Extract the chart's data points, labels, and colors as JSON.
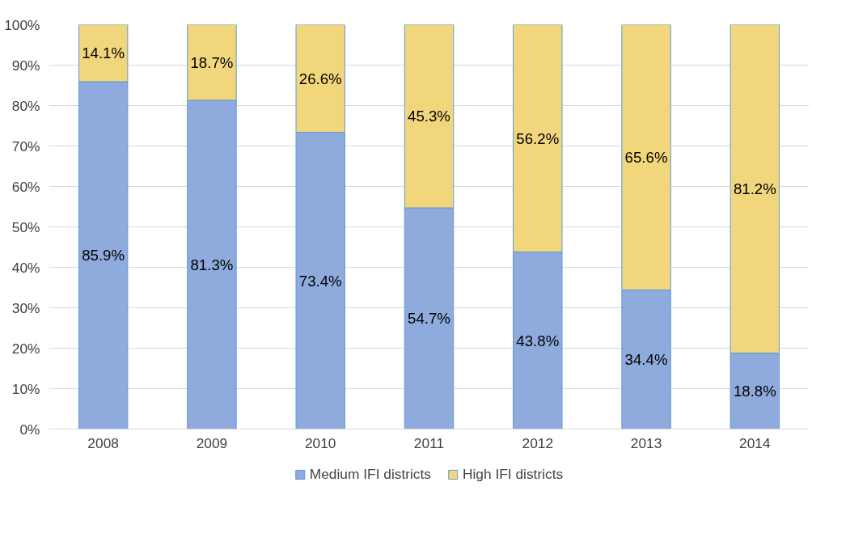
{
  "chart_data": {
    "type": "bar",
    "stacked": true,
    "categories": [
      "2008",
      "2009",
      "2010",
      "2011",
      "2012",
      "2013",
      "2014"
    ],
    "ylim": [
      0,
      100
    ],
    "yticks": [
      {
        "value": 0,
        "label": "0%"
      },
      {
        "value": 10,
        "label": "10%"
      },
      {
        "value": 20,
        "label": "20%"
      },
      {
        "value": 30,
        "label": "30%"
      },
      {
        "value": 40,
        "label": "40%"
      },
      {
        "value": 50,
        "label": "50%"
      },
      {
        "value": 60,
        "label": "60%"
      },
      {
        "value": 70,
        "label": "70%"
      },
      {
        "value": 80,
        "label": "80%"
      },
      {
        "value": 90,
        "label": "90%"
      },
      {
        "value": 100,
        "label": "100%"
      }
    ],
    "grid": "y",
    "legend": "bottom",
    "series": [
      {
        "name": "Medium IFI districts",
        "color": "#8faadc",
        "values": [
          85.9,
          81.3,
          73.4,
          54.7,
          43.8,
          34.4,
          18.8
        ],
        "value_labels": [
          "85.9%",
          "81.3%",
          "73.4%",
          "54.7%",
          "43.8%",
          "34.4%",
          "18.8%"
        ]
      },
      {
        "name": "High IFI districts",
        "color": "#f2d67c",
        "values": [
          14.1,
          18.7,
          26.6,
          45.3,
          56.2,
          65.6,
          81.2
        ],
        "value_labels": [
          "14.1%",
          "18.7%",
          "26.6%",
          "45.3%",
          "56.2%",
          "65.6%",
          "81.2%"
        ]
      }
    ]
  }
}
